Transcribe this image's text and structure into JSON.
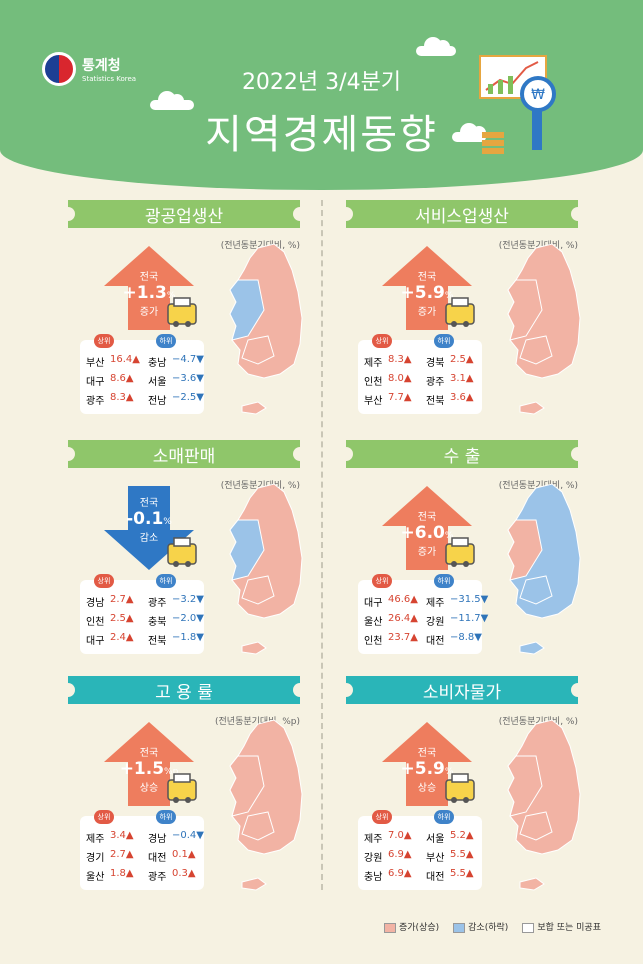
{
  "header": {
    "logo_ko": "통계청",
    "logo_en": "Statistics Korea",
    "period": "2022년 3/4분기",
    "title": "지역경제동향"
  },
  "colors": {
    "increase": "#f2b3a4",
    "decrease": "#9bc3e8",
    "none": "#ffffff",
    "up_arrow": "#ee7d5e",
    "down_arrow": "#2f78c5"
  },
  "panels": [
    {
      "title": "광공업생산",
      "unit": "(전년동분기대비, %)",
      "nation": "전국",
      "value": "+1.3",
      "suffix": "%",
      "status": "증가",
      "direction": "up",
      "top_label": "상위",
      "bottom_label": "하위",
      "top": [
        {
          "region": "부산",
          "value": "16.4"
        },
        {
          "region": "대구",
          "value": "8.6"
        },
        {
          "region": "광주",
          "value": "8.3"
        }
      ],
      "bottom": [
        {
          "region": "충남",
          "value": "−4.7"
        },
        {
          "region": "서울",
          "value": "−3.6"
        },
        {
          "region": "전남",
          "value": "−2.5"
        }
      ],
      "icon": "excavator-icon"
    },
    {
      "title": "서비스업생산",
      "unit": "(전년동분기대비, %)",
      "nation": "전국",
      "value": "+5.9",
      "suffix": "%",
      "status": "증가",
      "direction": "up",
      "top_label": "상위",
      "bottom_label": "하위",
      "top": [
        {
          "region": "제주",
          "value": "8.3"
        },
        {
          "region": "인천",
          "value": "8.0"
        },
        {
          "region": "부산",
          "value": "7.7"
        }
      ],
      "bottom": [
        {
          "region": "경북",
          "value": "2.5"
        },
        {
          "region": "광주",
          "value": "3.1"
        },
        {
          "region": "전북",
          "value": "3.6"
        }
      ],
      "icon": "headset-agent-icon"
    },
    {
      "title": "소매판매",
      "unit": "(전년동분기대비, %)",
      "nation": "전국",
      "value": "-0.1",
      "suffix": "%",
      "status": "감소",
      "direction": "down",
      "top_label": "상위",
      "bottom_label": "하위",
      "top": [
        {
          "region": "경남",
          "value": "2.7"
        },
        {
          "region": "인천",
          "value": "2.5"
        },
        {
          "region": "대구",
          "value": "2.4"
        }
      ],
      "bottom": [
        {
          "region": "광주",
          "value": "−3.2"
        },
        {
          "region": "충북",
          "value": "−2.0"
        },
        {
          "region": "전북",
          "value": "−1.8"
        }
      ],
      "icon": "shopping-bag-icon"
    },
    {
      "title": "수 출",
      "unit": "(전년동분기대비, %)",
      "nation": "전국",
      "value": "+6.0",
      "suffix": "%",
      "status": "증가",
      "direction": "up",
      "top_label": "상위",
      "bottom_label": "하위",
      "top": [
        {
          "region": "대구",
          "value": "46.6"
        },
        {
          "region": "울산",
          "value": "26.4"
        },
        {
          "region": "인천",
          "value": "23.7"
        }
      ],
      "bottom": [
        {
          "region": "제주",
          "value": "−31.5"
        },
        {
          "region": "강원",
          "value": "−11.7"
        },
        {
          "region": "대전",
          "value": "−8.8"
        }
      ],
      "icon": "cargo-ship-icon"
    },
    {
      "title": "고 용 률",
      "unit": "(전년동분기대비, %p)",
      "nation": "전국",
      "value": "+1.5",
      "suffix": "%p",
      "status": "상승",
      "direction": "up",
      "top_label": "상위",
      "bottom_label": "하위",
      "top": [
        {
          "region": "제주",
          "value": "3.4"
        },
        {
          "region": "경기",
          "value": "2.7"
        },
        {
          "region": "울산",
          "value": "1.8"
        }
      ],
      "bottom": [
        {
          "region": "경남",
          "value": "−0.4"
        },
        {
          "region": "대전",
          "value": "0.1"
        },
        {
          "region": "광주",
          "value": "0.3"
        }
      ],
      "icon": "clipboard-clock-icon"
    },
    {
      "title": "소비자물가",
      "unit": "(전년동분기대비, %)",
      "nation": "전국",
      "value": "+5.9",
      "suffix": "%",
      "status": "상승",
      "direction": "up",
      "top_label": "상위",
      "bottom_label": "하위",
      "top": [
        {
          "region": "제주",
          "value": "7.0"
        },
        {
          "region": "강원",
          "value": "6.9"
        },
        {
          "region": "충남",
          "value": "6.9"
        }
      ],
      "bottom": [
        {
          "region": "서울",
          "value": "5.2"
        },
        {
          "region": "부산",
          "value": "5.5"
        },
        {
          "region": "대전",
          "value": "5.5"
        }
      ],
      "icon": "banknote-icon"
    }
  ],
  "legend": [
    {
      "label": "증가(상승)",
      "color": "#f2b3a4"
    },
    {
      "label": "감소(하락)",
      "color": "#9bc3e8"
    },
    {
      "label": "보합 또는 미공표",
      "color": "#ffffff"
    }
  ]
}
